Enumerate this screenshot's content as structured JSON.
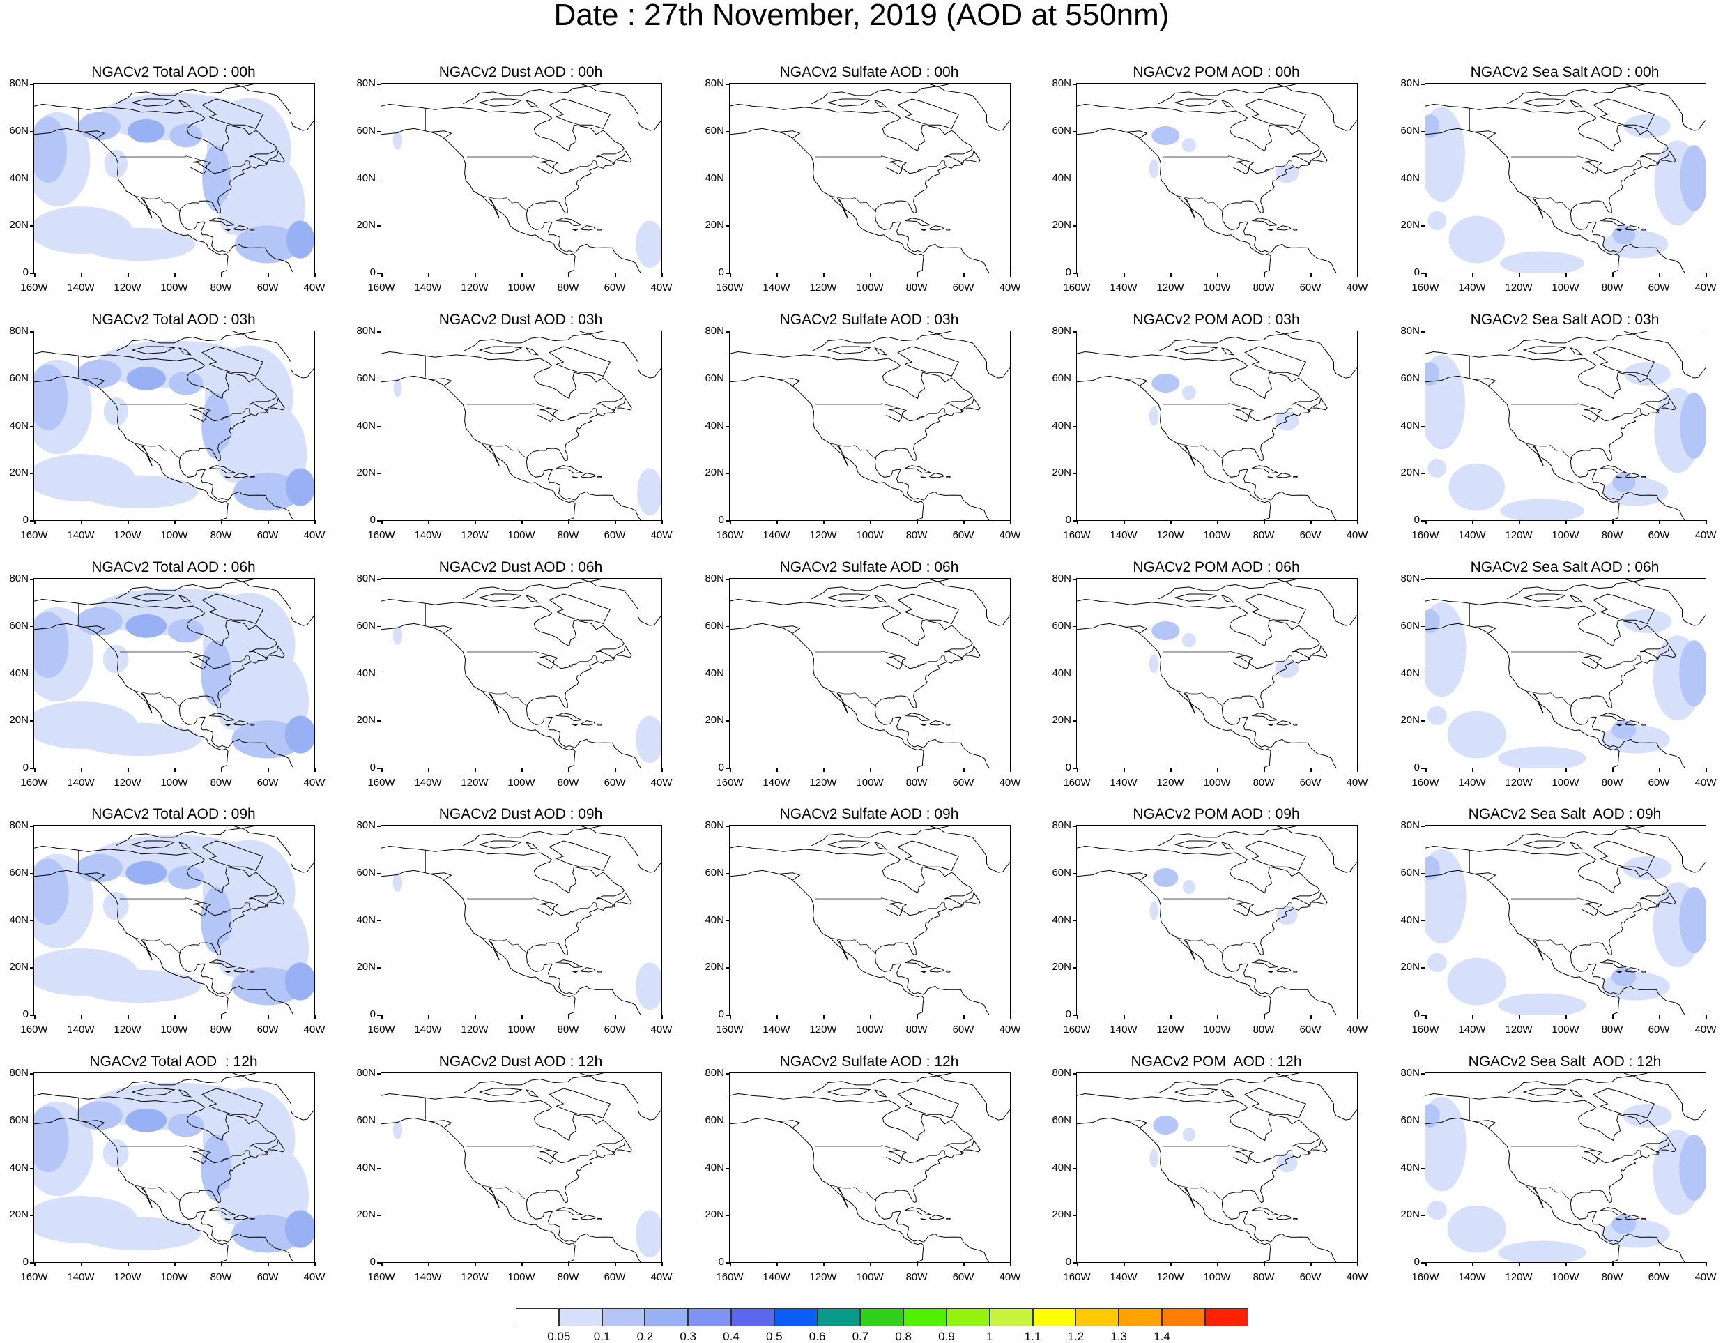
{
  "title": "Date : 27th November, 2019 (AOD at 550nm)",
  "map_axes": {
    "lat_ticks": [
      "80N",
      "60N",
      "40N",
      "20N",
      "0"
    ],
    "lon_ticks": [
      "160W",
      "140W",
      "120W",
      "100W",
      "80W",
      "60W",
      "40W"
    ]
  },
  "rows": [
    {
      "hour": "00h",
      "panels": [
        {
          "title": "NGACv2 Total AOD : 00h",
          "field": "total",
          "intensity": 1.0
        },
        {
          "title": "NGACv2 Dust AOD : 00h",
          "field": "dust",
          "intensity": 1.0
        },
        {
          "title": "NGACv2 Sulfate AOD : 00h",
          "field": "sulfate",
          "intensity": 1.0
        },
        {
          "title": "NGACv2 POM AOD : 00h",
          "field": "pom",
          "intensity": 1.0
        },
        {
          "title": "NGACv2 Sea Salt AOD : 00h",
          "field": "seasalt",
          "intensity": 1.0
        }
      ]
    },
    {
      "hour": "03h",
      "panels": [
        {
          "title": "NGACv2 Total AOD : 03h",
          "field": "total",
          "intensity": 1.05
        },
        {
          "title": "NGACv2 Dust AOD : 03h",
          "field": "dust",
          "intensity": 0.9
        },
        {
          "title": "NGACv2 Sulfate AOD : 03h",
          "field": "sulfate",
          "intensity": 1.0
        },
        {
          "title": "NGACv2 POM AOD : 03h",
          "field": "pom",
          "intensity": 1.0
        },
        {
          "title": "NGACv2 Sea Salt AOD : 03h",
          "field": "seasalt",
          "intensity": 1.0
        }
      ]
    },
    {
      "hour": "06h",
      "panels": [
        {
          "title": "NGACv2 Total AOD : 06h",
          "field": "total",
          "intensity": 1.1
        },
        {
          "title": "NGACv2 Dust AOD : 06h",
          "field": "dust",
          "intensity": 1.0
        },
        {
          "title": "NGACv2 Sulfate AOD : 06h",
          "field": "sulfate",
          "intensity": 1.0
        },
        {
          "title": "NGACv2 POM AOD : 06h",
          "field": "pom",
          "intensity": 1.0
        },
        {
          "title": "NGACv2 Sea Salt AOD : 06h",
          "field": "seasalt",
          "intensity": 1.05
        }
      ]
    },
    {
      "hour": "09h",
      "panels": [
        {
          "title": "NGACv2 Total AOD : 09h",
          "field": "total",
          "intensity": 1.1
        },
        {
          "title": "NGACv2 Dust AOD : 09h",
          "field": "dust",
          "intensity": 1.0
        },
        {
          "title": "NGACv2 Sulfate AOD : 09h",
          "field": "sulfate",
          "intensity": 1.0
        },
        {
          "title": "NGACv2 POM AOD : 09h",
          "field": "pom",
          "intensity": 0.9
        },
        {
          "title": "NGACv2 Sea Salt  AOD : 09h",
          "field": "seasalt",
          "intensity": 1.05
        }
      ]
    },
    {
      "hour": "12h",
      "panels": [
        {
          "title": "NGACv2 Total AOD  : 12h",
          "field": "total",
          "intensity": 1.1
        },
        {
          "title": "NGACv2 Dust AOD : 12h",
          "field": "dust",
          "intensity": 1.0
        },
        {
          "title": "NGACv2 Sulfate AOD : 12h",
          "field": "sulfate",
          "intensity": 1.0
        },
        {
          "title": "NGACv2 POM  AOD : 12h",
          "field": "pom",
          "intensity": 0.9
        },
        {
          "title": "NGACv2 Sea Salt  AOD : 12h",
          "field": "seasalt",
          "intensity": 1.05
        }
      ]
    }
  ],
  "colorbar": {
    "colors": [
      "#ffffff",
      "#d6e0fb",
      "#b4c6f7",
      "#98b1f5",
      "#7f93f3",
      "#5b68ee",
      "#0a5ef5",
      "#0a9a8a",
      "#30d11a",
      "#52f000",
      "#94f20e",
      "#c9f43e",
      "#ffff00",
      "#ffc800",
      "#ffa200",
      "#ff7d00",
      "#ff2200"
    ],
    "labels": [
      "0.05",
      "0.1",
      "0.2",
      "0.3",
      "0.4",
      "0.5",
      "0.6",
      "0.7",
      "0.8",
      "0.9",
      "1",
      "1.1",
      "1.2",
      "1.3",
      "1.4"
    ]
  }
}
